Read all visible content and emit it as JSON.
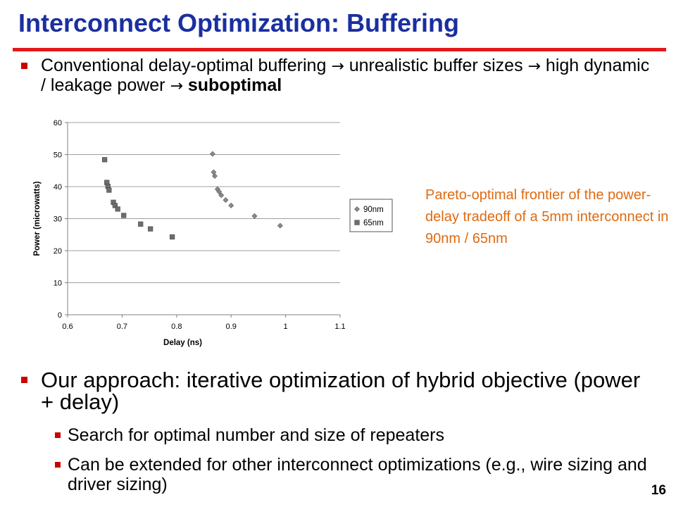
{
  "slide": {
    "title": "Interconnect Optimization: Buffering",
    "bullet1": {
      "part1": "Conventional delay-optimal buffering",
      "part2": "unrealistic buffer sizes",
      "part3": "high dynamic / leakage power",
      "bold": "suboptimal"
    },
    "bullet2": "Our approach: iterative optimization of hybrid objective (power + delay)",
    "sub1": "Search for optimal number and size of repeaters",
    "sub2": "Can be extended for other interconnect optimizations (e.g., wire sizing and driver sizing)",
    "caption": "Pareto-optimal frontier of the power-delay tradeoff of a 5mm interconnect in 90nm / 65nm",
    "page_number": "16",
    "arrow_glyph": "→"
  },
  "colors": {
    "title": "#1a2fa0",
    "rule": "#e31919",
    "bullet": "#cc0000",
    "caption": "#e06a10"
  },
  "chart_data": {
    "type": "scatter",
    "xlabel": "Delay (ns)",
    "ylabel": "Power (microwatts)",
    "xlim": [
      0.6,
      1.1
    ],
    "ylim": [
      0,
      60
    ],
    "xticks": [
      "0.6",
      "0.7",
      "0.8",
      "0.9",
      "1",
      "1.1"
    ],
    "yticks": [
      "0",
      "10",
      "20",
      "30",
      "40",
      "50",
      "60"
    ],
    "grid": "horizontal",
    "legend_position": "right",
    "series": [
      {
        "name": "90nm",
        "marker": "diamond",
        "x": [
          0.866,
          0.868,
          0.87,
          0.875,
          0.878,
          0.882,
          0.89,
          0.9,
          0.943,
          0.99
        ],
        "y": [
          50.2,
          44.5,
          43.3,
          39.2,
          38.4,
          37.3,
          35.8,
          34.1,
          30.8,
          27.8
        ]
      },
      {
        "name": "65nm",
        "marker": "square",
        "x": [
          0.668,
          0.672,
          0.674,
          0.676,
          0.684,
          0.687,
          0.692,
          0.703,
          0.734,
          0.752,
          0.792
        ],
        "y": [
          48.4,
          41.3,
          40.1,
          38.9,
          35.1,
          34.1,
          33.0,
          31.0,
          28.3,
          26.8,
          24.3
        ]
      }
    ]
  }
}
